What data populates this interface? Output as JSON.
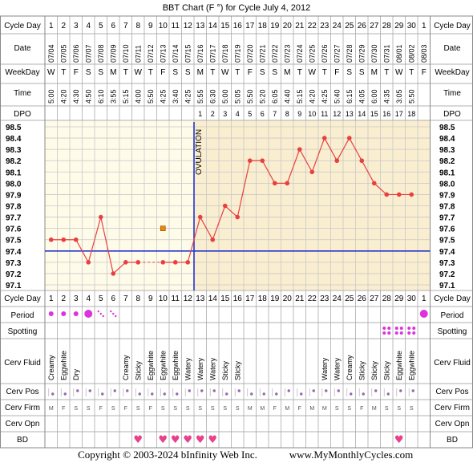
{
  "title": "BBT Chart (F °) for Cycle July 4, 2012",
  "copyright": "Copyright © 2003-2024 bInfinity Web Inc.",
  "website": "www.MyMonthlyCycles.com",
  "row_labels": {
    "cycle_day": "Cycle Day",
    "date": "Date",
    "weekday": "WeekDay",
    "time": "Time",
    "dpo": "DPO",
    "period": "Period",
    "spotting": "Spotting",
    "cerv_fluid": "Cerv Fluid",
    "cerv_pos": "Cerv Pos",
    "cerv_firm": "Cerv Firm",
    "cerv_opn": "Cerv Opn",
    "bd": "BD"
  },
  "chart_data": {
    "type": "line",
    "title": "BBT Chart (F °) for Cycle July 4, 2012",
    "ylim": [
      97.1,
      98.5
    ],
    "yticks": [
      "98.5",
      "98.4",
      "98.3",
      "98.2",
      "98.1",
      "98.0",
      "97.9",
      "97.8",
      "97.7",
      "97.6",
      "97.5",
      "97.4",
      "97.3",
      "97.2",
      "97.1"
    ],
    "cycle_days": [
      1,
      2,
      3,
      4,
      5,
      6,
      7,
      8,
      9,
      10,
      11,
      12,
      13,
      14,
      15,
      16,
      17,
      18,
      19,
      20,
      21,
      22,
      23,
      24,
      25,
      26,
      27,
      28,
      29,
      30,
      1
    ],
    "dates": [
      "07/04",
      "07/05",
      "07/06",
      "07/07",
      "07/08",
      "07/09",
      "07/10",
      "07/11",
      "07/12",
      "07/13",
      "07/14",
      "07/15",
      "07/16",
      "07/17",
      "07/18",
      "07/19",
      "07/20",
      "07/21",
      "07/22",
      "07/23",
      "07/24",
      "07/25",
      "07/26",
      "07/27",
      "07/28",
      "07/29",
      "07/30",
      "07/31",
      "08/01",
      "08/02",
      "08/03"
    ],
    "weekdays": [
      "W",
      "T",
      "F",
      "S",
      "S",
      "M",
      "T",
      "W",
      "T",
      "F",
      "S",
      "S",
      "M",
      "T",
      "W",
      "T",
      "F",
      "S",
      "S",
      "M",
      "T",
      "W",
      "T",
      "F",
      "S",
      "S",
      "M",
      "T",
      "W",
      "T",
      "F"
    ],
    "times": [
      "5:00",
      "4:20",
      "4:30",
      "4:50",
      "6:10",
      "3:55",
      "5:15",
      "4:00",
      "5:50",
      "4:25",
      "3:40",
      "4:25",
      "5:55",
      "6:30",
      "5:00",
      "5:05",
      "5:50",
      "5:20",
      "6:05",
      "4:40",
      "5:15",
      "4:20",
      "4:25",
      "5:40",
      "6:15",
      "4:05",
      "6:00",
      "4:35",
      "3:05",
      "5:50",
      ""
    ],
    "dpo": [
      "",
      "",
      "",
      "",
      "",
      "",
      "",
      "",
      "",
      "",
      "",
      "",
      "1",
      "2",
      "3",
      "4",
      "5",
      "6",
      "7",
      "8",
      "9",
      "10",
      "11",
      "12",
      "13",
      "14",
      "15",
      "16",
      "17",
      "18",
      ""
    ],
    "temps": [
      97.5,
      97.5,
      97.5,
      97.3,
      97.7,
      97.2,
      97.3,
      97.3,
      null,
      97.3,
      97.3,
      97.3,
      97.7,
      97.5,
      97.8,
      97.7,
      98.2,
      98.2,
      98.0,
      98.0,
      98.3,
      98.1,
      98.4,
      98.2,
      98.4,
      98.2,
      98.0,
      97.9,
      97.9,
      97.9,
      null
    ],
    "dashed_segment": [
      8,
      10
    ],
    "discarded": {
      "day_index": 9,
      "value": 97.6
    },
    "coverline": 97.4,
    "ovulation_day_index": 12,
    "ovulation_label": "OVULATION",
    "period": [
      "dot",
      "dot",
      "dot",
      "bigdot",
      "light",
      "light",
      "",
      "",
      "",
      "",
      "",
      "",
      "",
      "",
      "",
      "",
      "",
      "",
      "",
      "",
      "",
      "",
      "",
      "",
      "",
      "",
      "",
      "",
      "",
      "",
      "bigdot"
    ],
    "spotting": [
      "",
      "",
      "",
      "",
      "",
      "",
      "",
      "",
      "",
      "",
      "",
      "",
      "",
      "",
      "",
      "",
      "",
      "",
      "",
      "",
      "",
      "",
      "",
      "",
      "",
      "",
      "",
      "dots",
      "dots",
      "dots",
      ""
    ],
    "cerv_fluid": [
      "Creamy",
      "Eggwhite",
      "Dry",
      "",
      "",
      "",
      "Creamy",
      "Sticky",
      "Eggwhite",
      "Eggwhite",
      "Eggwhite",
      "Watery",
      "Watery",
      "Watery",
      "Sticky",
      "Sticky",
      "",
      "",
      "",
      "",
      "",
      "",
      "Watery",
      "Watery",
      "Creamy",
      "Sticky",
      "Sticky",
      "Sticky",
      "Eggwhite",
      "Eggwhite",
      ""
    ],
    "cerv_pos": [
      "l",
      "l",
      "m",
      "m",
      "l",
      "m",
      "m",
      "l",
      "l",
      "l",
      "l",
      "m",
      "m",
      "m",
      "l",
      "m",
      "l",
      "l",
      "l",
      "m",
      "l",
      "m",
      "m",
      "m",
      "l",
      "l",
      "m",
      "l",
      "m",
      "m",
      ""
    ],
    "cerv_firm": [
      "M",
      "F",
      "S",
      "S",
      "F",
      "S",
      "F",
      "S",
      "F",
      "S",
      "S",
      "S",
      "S",
      "S",
      "S",
      "S",
      "M",
      "M",
      "F",
      "M",
      "F",
      "M",
      "M",
      "S",
      "S",
      "F",
      "M",
      "S",
      "S",
      "S",
      ""
    ],
    "bd": [
      "",
      "",
      "",
      "",
      "",
      "",
      "",
      "heart",
      "",
      "heart",
      "heart",
      "heart",
      "heart",
      "heart",
      "",
      "",
      "",
      "",
      "",
      "",
      "",
      "",
      "",
      "",
      "",
      "",
      "",
      "",
      "heart",
      "",
      ""
    ]
  },
  "colors": {
    "line": "#e84040",
    "coverline": "#2233cc",
    "ovulation": "#2233cc",
    "pre_bg": "#fffbe9",
    "post_bg": "#faeed0",
    "grid": "#c8c8c8",
    "period": "#dd33dd",
    "heart": "#e8408c",
    "discarded": "#ee8800"
  }
}
